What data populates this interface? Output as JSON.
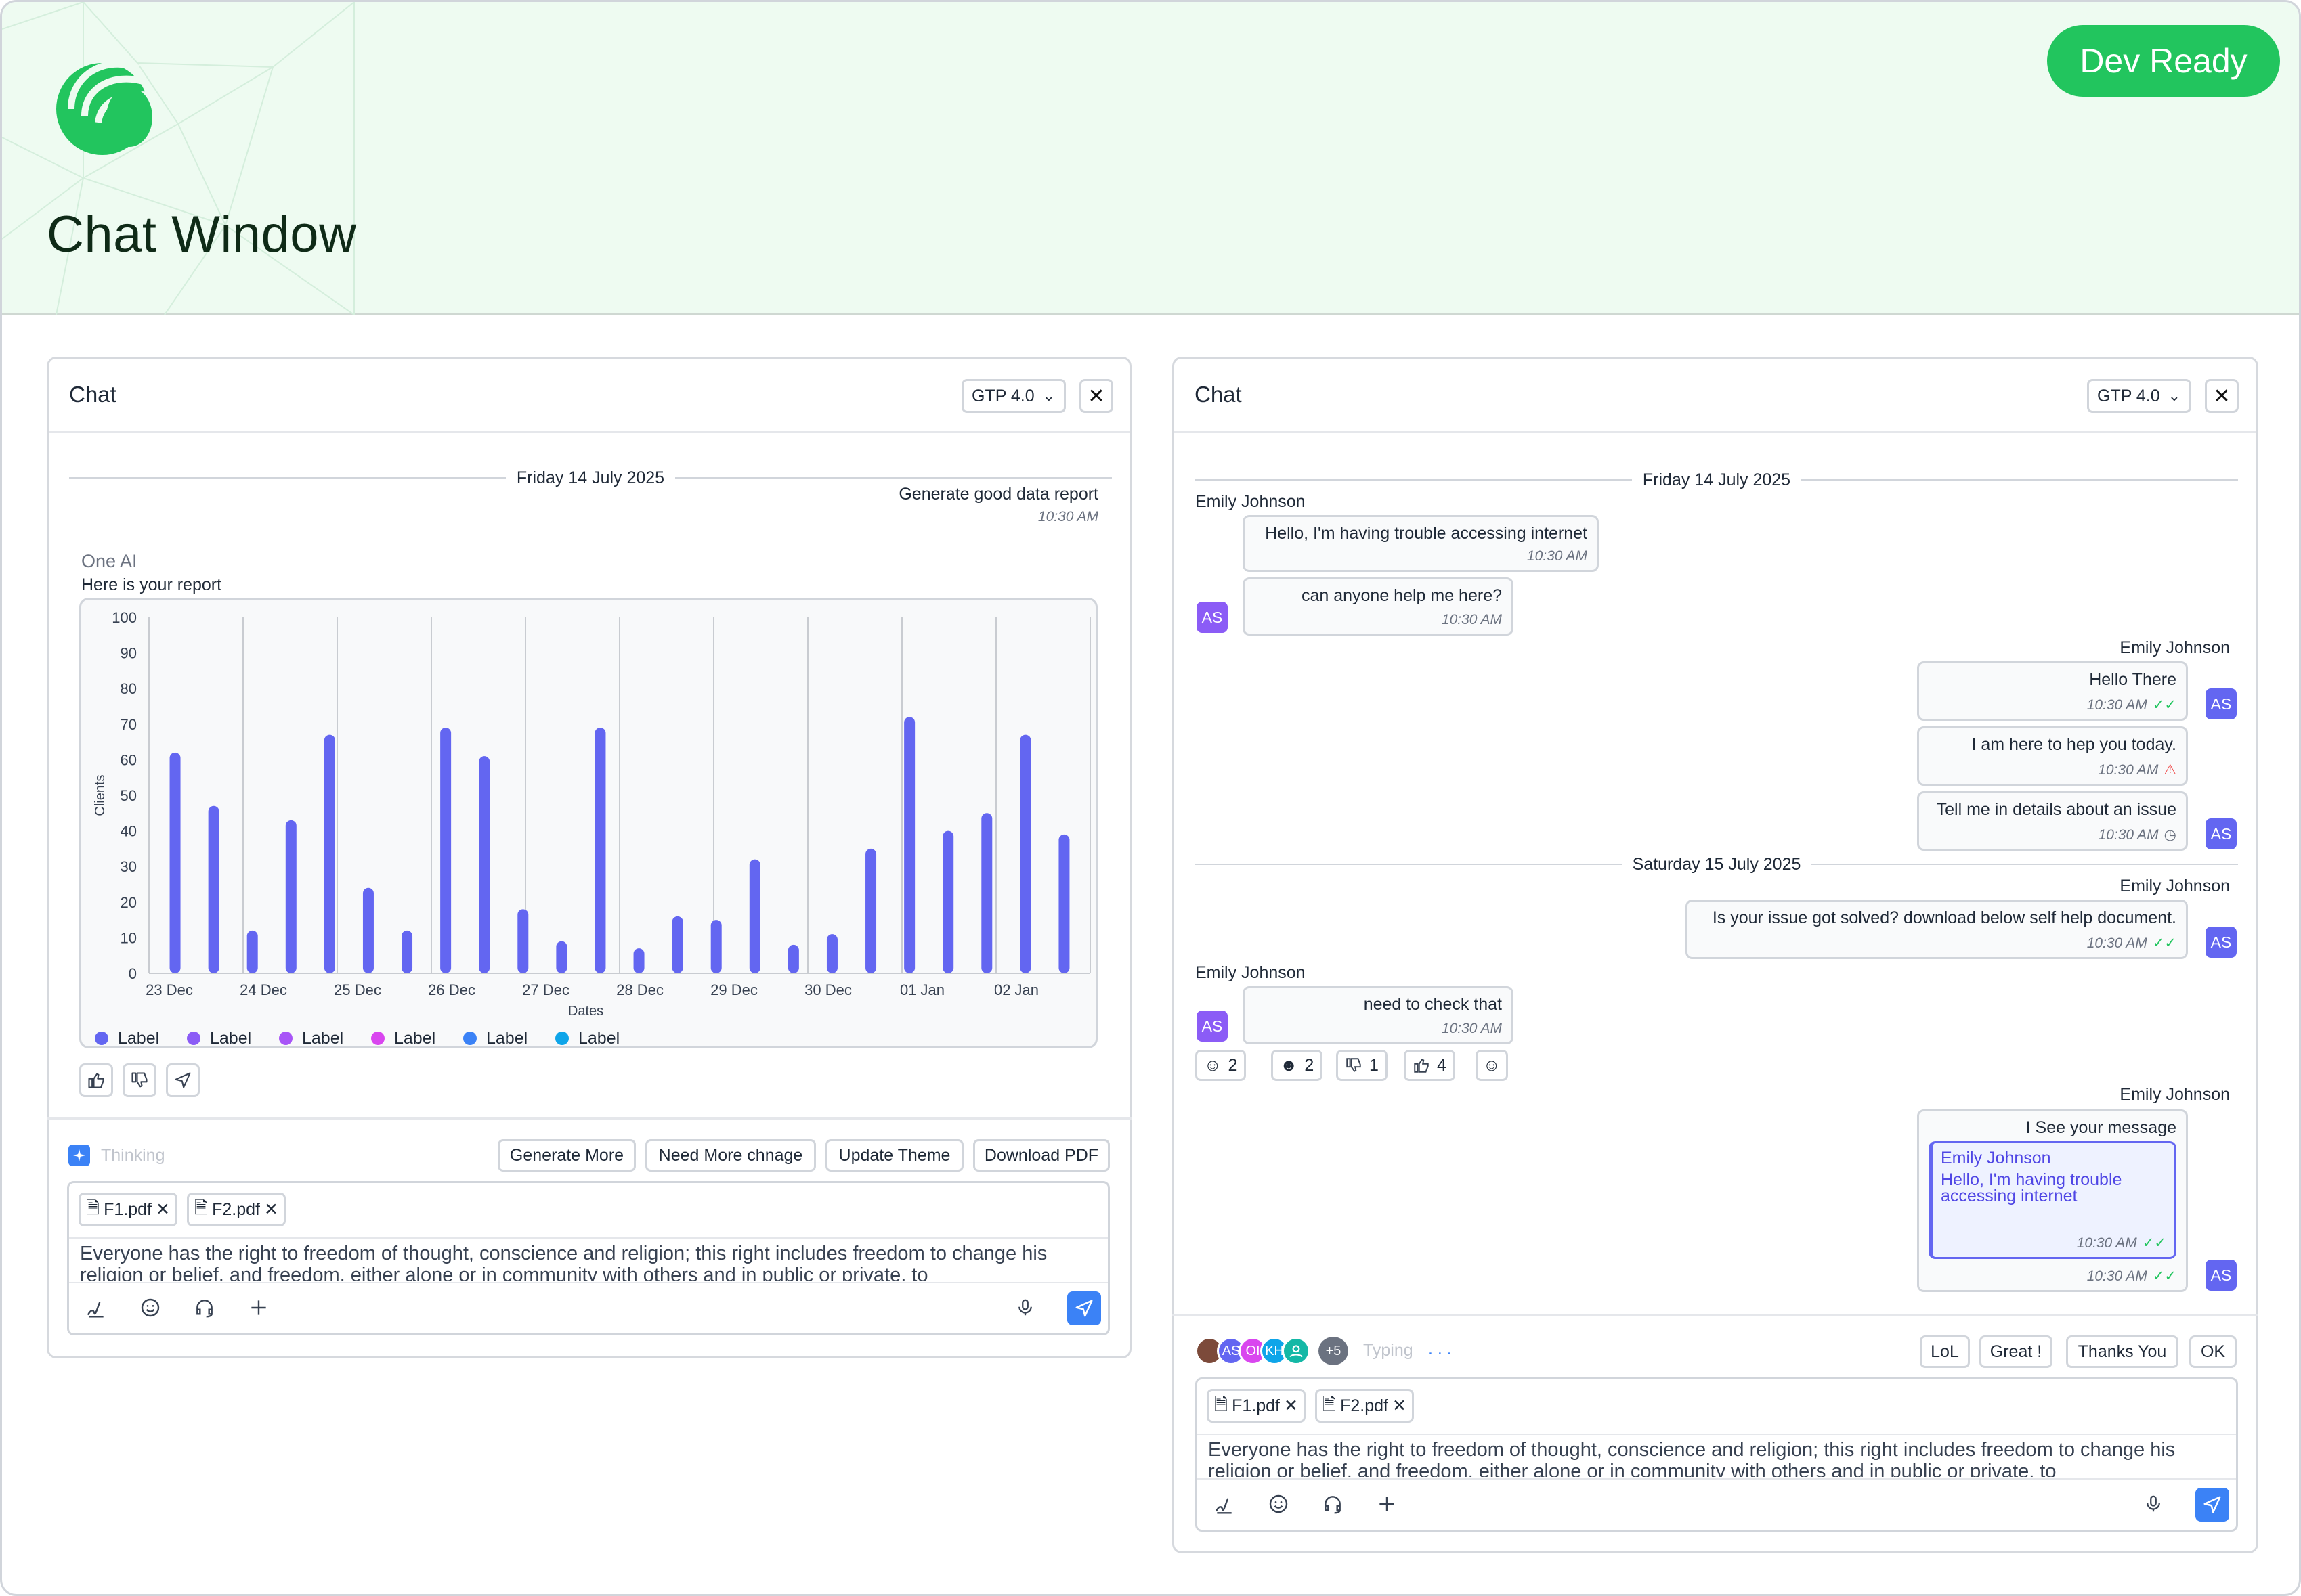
{
  "hero": {
    "title": "Chat Window",
    "badge": "Dev Ready"
  },
  "left": {
    "title": "Chat",
    "model": "GTP 4.0",
    "date": "Friday 14 July 2025",
    "user_msg": "Generate good data report",
    "user_time": "10:30 AM",
    "ai_name": "One AI",
    "ai_intro": "Here is your report",
    "thinking": "Thinking",
    "actions": [
      "Generate More",
      "Need More chnage",
      "Update Theme",
      "Download PDF"
    ],
    "attachments": [
      "F1.pdf",
      "F2.pdf"
    ],
    "composer_text": "Everyone has the right to freedom of thought, conscience and religion; this right includes freedom to change his religion or belief, and freedom, either alone or in community with others and in public or private, to"
  },
  "chart_data": {
    "type": "bar",
    "ylabel": "Clients",
    "xlabel": "Dates",
    "ylim": [
      0,
      100
    ],
    "yticks": [
      0,
      10,
      20,
      30,
      40,
      50,
      60,
      70,
      80,
      90,
      100
    ],
    "xtick_labels": [
      "23 Dec",
      "24 Dec",
      "25 Dec",
      "26 Dec",
      "27 Dec",
      "28 Dec",
      "29 Dec",
      "30 Dec",
      "01 Jan",
      "02 Jan"
    ],
    "values": [
      62,
      47,
      12,
      43,
      67,
      24,
      12,
      69,
      61,
      18,
      9,
      69,
      7,
      16,
      15,
      32,
      8,
      11,
      35,
      72,
      40,
      45,
      67,
      39
    ],
    "color": "#6366f1",
    "grid": "vertical",
    "legend": [
      {
        "label": "Label",
        "color": "#6366f1"
      },
      {
        "label": "Label",
        "color": "#8b5cf6"
      },
      {
        "label": "Label",
        "color": "#a855f7"
      },
      {
        "label": "Label",
        "color": "#d946ef"
      },
      {
        "label": "Label",
        "color": "#3b82f6"
      },
      {
        "label": "Label",
        "color": "#0ea5e9"
      }
    ]
  },
  "right": {
    "title": "Chat",
    "model": "GTP 4.0",
    "date1": "Friday 14 July 2025",
    "date2": "Saturday 15 July 2025",
    "sender": "Emily Johnson",
    "avatar": "AS",
    "m1": "Hello, I'm having trouble accessing internet",
    "m2": "can anyone help me here?",
    "m3": "Hello There",
    "m4": "I am here to hep you today.",
    "m5": "Tell me in details about an issue",
    "m6": "Is your issue got solved? download below self help document.",
    "m7": "need to check that",
    "m8": "I See your message",
    "quote_name": "Emily Johnson",
    "quote_text": "Hello, I'm having trouble accessing internet",
    "time": "10:30 AM",
    "reactions": [
      "2",
      "2",
      "1",
      "4"
    ],
    "typing": "Typing",
    "typing_avatars": [
      "AS",
      "OI",
      "KH"
    ],
    "more_count": "+5",
    "quick_replies": [
      "LoL",
      "Great !",
      "Thanks You",
      "OK"
    ],
    "attachments": [
      "F1.pdf",
      "F2.pdf"
    ],
    "composer_text": "Everyone has the right to freedom of thought, conscience and religion; this right includes freedom to change his religion or belief, and freedom, either alone or in community with others and in public or private, to"
  }
}
